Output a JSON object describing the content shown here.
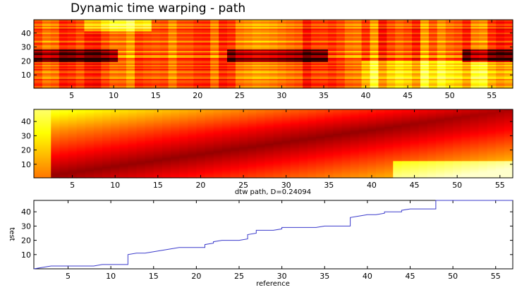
{
  "figure": {
    "title": "Dynamic time warping - path"
  },
  "chart_data": [
    {
      "type": "heatmap",
      "title": "",
      "xlabel": "",
      "ylabel": "",
      "xlim": [
        0.5,
        57.5
      ],
      "ylim": [
        0.5,
        49.5
      ],
      "xticks": [
        5,
        10,
        15,
        20,
        25,
        30,
        35,
        40,
        45,
        50,
        55
      ],
      "yticks": [
        10,
        20,
        30,
        40
      ],
      "colormap": "hot",
      "description_rows": 49,
      "description_cols": 57
    },
    {
      "type": "heatmap",
      "title": "",
      "xlabel": "dtw path, D=0.24094",
      "ylabel": "",
      "xlim": [
        0.5,
        56.5
      ],
      "ylim": [
        0.5,
        48.5
      ],
      "xticks": [
        5,
        10,
        15,
        20,
        25,
        30,
        35,
        40,
        45,
        50,
        55
      ],
      "yticks": [
        10,
        20,
        30,
        40
      ],
      "colormap": "hot"
    },
    {
      "type": "line",
      "title": "",
      "xlabel": "reference",
      "ylabel": "test",
      "xlim": [
        1,
        57
      ],
      "ylim": [
        0,
        48
      ],
      "xticks": [
        5,
        10,
        15,
        20,
        25,
        30,
        35,
        40,
        45,
        50,
        55
      ],
      "yticks": [
        10,
        20,
        30,
        40
      ],
      "color": "#3a3acb",
      "series": [
        {
          "x": [
            1,
            2,
            3,
            4,
            5,
            6,
            7,
            8,
            9,
            10,
            11,
            12,
            12,
            13,
            14,
            15,
            16,
            17,
            18,
            19,
            20,
            21,
            21,
            22,
            22,
            23,
            24,
            25,
            26,
            26,
            27,
            27,
            28,
            29,
            30,
            30,
            31,
            32,
            33,
            34,
            35,
            36,
            37,
            38,
            38,
            39,
            40,
            41,
            42,
            42,
            43,
            44,
            44,
            45,
            46,
            47,
            48,
            48,
            49,
            50,
            51,
            52,
            53,
            54,
            55,
            56,
            57
          ],
          "y": [
            0,
            1,
            2,
            2,
            2,
            2,
            2,
            2,
            3,
            3,
            3,
            3,
            10,
            11,
            11,
            12,
            13,
            14,
            15,
            15,
            15,
            15,
            17,
            18,
            19,
            20,
            20,
            20,
            21,
            24,
            25,
            27,
            27,
            27,
            28,
            29,
            29,
            29,
            29,
            29,
            30,
            30,
            30,
            30,
            36,
            37,
            38,
            38,
            39,
            40,
            40,
            40,
            41,
            42,
            42,
            42,
            42,
            48,
            48,
            48,
            48,
            48,
            48,
            48,
            48,
            48,
            48
          ]
        }
      ]
    }
  ]
}
